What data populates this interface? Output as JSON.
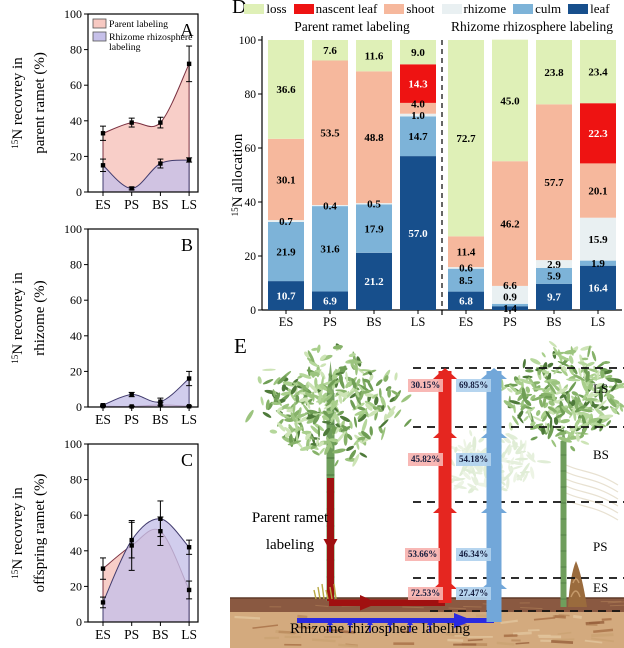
{
  "panel_d": {
    "letter": "D"
  },
  "panel_e": {
    "letter": "E",
    "parent_label_1": "Parent ramet",
    "parent_label_2": "labeling",
    "bottom_label": "Rhizome rhizosphere labeling",
    "colors": {
      "red_arrow": "#e52620",
      "blue_arrow": "#72a7d9",
      "dark_red": "#a01010",
      "ground_blue": "#2a2ae0"
    }
  },
  "chart_data": [
    {
      "id": "A",
      "type": "area",
      "letter": "A",
      "categories": [
        "ES",
        "PS",
        "BS",
        "LS"
      ],
      "ylabel": {
        "sup": "15",
        "line1": "N recovrey in",
        "line2": "parent ramet (%)"
      },
      "ylim": [
        0,
        100
      ],
      "yticks": [
        0,
        20,
        40,
        60,
        80,
        100
      ],
      "series": [
        {
          "name": "Parent labeling",
          "fill": "#f7c9c2",
          "opacity": 0.9,
          "stroke": "#7a3040",
          "values": [
            33,
            39,
            39,
            72
          ],
          "errors": [
            4,
            2.5,
            3,
            10
          ]
        },
        {
          "name": "Rhizome rhizosphere labeling",
          "fill": "#c6c0e9",
          "opacity": 0.8,
          "stroke": "#413b6d",
          "values": [
            15,
            2,
            16,
            18
          ],
          "errors": [
            3.5,
            0.8,
            2.5,
            1.2
          ]
        }
      ],
      "legend": [
        {
          "lines": [
            "Parent labeling"
          ],
          "fill": "#f7c9c2"
        },
        {
          "lines": [
            "Rhizome rhizosphere",
            "labeling"
          ],
          "fill": "#c6c0e9"
        }
      ]
    },
    {
      "id": "B",
      "type": "area",
      "letter": "B",
      "categories": [
        "ES",
        "PS",
        "BS",
        "LS"
      ],
      "ylabel": {
        "sup": "15",
        "line1": "N recovrey in",
        "line2": "rhizome (%)"
      },
      "ylim": [
        0,
        100
      ],
      "yticks": [
        0,
        20,
        40,
        60,
        80,
        100
      ],
      "series": [
        {
          "name": "Parent labeling",
          "fill": "#f7c9c2",
          "opacity": 0.9,
          "stroke": "#7a3040",
          "values": [
            0.5,
            0.3,
            1.2,
            0.4
          ],
          "errors": [
            0.3,
            0.2,
            1.5,
            0.3
          ]
        },
        {
          "name": "Rhizome rhizosphere labeling",
          "fill": "#c6c0e9",
          "opacity": 0.8,
          "stroke": "#413b6d",
          "values": [
            1,
            7,
            3,
            16
          ],
          "errors": [
            0.6,
            1.2,
            2,
            4
          ]
        }
      ]
    },
    {
      "id": "C",
      "type": "area",
      "letter": "C",
      "categories": [
        "ES",
        "PS",
        "BS",
        "LS"
      ],
      "ylabel": {
        "sup": "15",
        "line1": "N recovrey in",
        "line2": "offspring ramet (%)"
      },
      "ylim": [
        0,
        100
      ],
      "yticks": [
        0,
        20,
        40,
        60,
        80,
        100
      ],
      "series": [
        {
          "name": "Parent labeling",
          "fill": "#f7c9c2",
          "opacity": 0.9,
          "stroke": "#7a3040",
          "values": [
            30,
            43,
            51,
            18
          ],
          "errors": [
            6,
            14,
            8,
            5
          ]
        },
        {
          "name": "Rhizome rhizosphere labeling",
          "fill": "#c6c0e9",
          "opacity": 0.8,
          "stroke": "#413b6d",
          "values": [
            11,
            46,
            58,
            42
          ],
          "errors": [
            3,
            10,
            10,
            4
          ]
        }
      ]
    },
    {
      "id": "D",
      "type": "stacked-bar",
      "ylabel": {
        "sup": "15",
        "line1": "N allocation"
      },
      "ylim": [
        0,
        100
      ],
      "yticks": [
        0,
        20,
        40,
        60,
        80,
        100
      ],
      "legend": [
        {
          "label": "loss",
          "color": "#dff0b7"
        },
        {
          "label": "nascent leaf",
          "color": "#ee1312"
        },
        {
          "label": "shoot",
          "color": "#f6b89d"
        },
        {
          "label": "rhizome",
          "color": "#e9f0f2"
        },
        {
          "label": "culm",
          "color": "#7db3d8"
        },
        {
          "label": "leaf",
          "color": "#174f8c"
        }
      ],
      "segment_order": [
        "leaf",
        "culm",
        "rhizome",
        "shoot",
        "nascent leaf",
        "loss"
      ],
      "segment_colors": {
        "leaf": "#174f8c",
        "culm": "#7db3d8",
        "rhizome": "#e9f0f2",
        "shoot": "#f6b89d",
        "nascent leaf": "#ee1312",
        "loss": "#dff0b7"
      },
      "groups": [
        {
          "title": "Parent ramet labeling",
          "categories": [
            "ES",
            "PS",
            "BS",
            "LS"
          ],
          "bars": [
            {
              "leaf": 10.7,
              "culm": 21.9,
              "rhizome": 0.7,
              "shoot": 30.1,
              "nascent leaf": 0,
              "loss": 36.6
            },
            {
              "leaf": 6.9,
              "culm": 31.6,
              "rhizome": 0.4,
              "shoot": 53.5,
              "nascent leaf": 0,
              "loss": 7.6
            },
            {
              "leaf": 21.2,
              "culm": 17.9,
              "rhizome": 0.5,
              "shoot": 48.8,
              "nascent leaf": 0,
              "loss": 11.6
            },
            {
              "leaf": 57.0,
              "culm": 14.7,
              "rhizome": 1.0,
              "shoot": 4.0,
              "nascent leaf": 14.3,
              "loss": 9.0
            }
          ]
        },
        {
          "title": "Rhizome rhizosphere labeling",
          "categories": [
            "ES",
            "PS",
            "BS",
            "LS"
          ],
          "bars": [
            {
              "leaf": 6.8,
              "culm": 8.5,
              "rhizome": 0.6,
              "shoot": 11.4,
              "nascent leaf": 0,
              "loss": 72.7
            },
            {
              "leaf": 1.4,
              "culm": 0.9,
              "rhizome": 6.6,
              "shoot": 46.2,
              "nascent leaf": 0,
              "loss": 45.0
            },
            {
              "leaf": 9.7,
              "culm": 5.9,
              "rhizome": 2.9,
              "shoot": 57.7,
              "nascent leaf": 0,
              "loss": 23.8
            },
            {
              "leaf": 16.4,
              "culm": 1.9,
              "rhizome": 15.9,
              "shoot": 20.1,
              "nascent leaf": 22.3,
              "loss": 23.4
            }
          ]
        }
      ]
    },
    {
      "id": "E",
      "type": "diagram",
      "stages": [
        "LS",
        "BS",
        "PS",
        "ES"
      ],
      "red_labels": [
        "30.15%",
        "45.82%",
        "53.66%",
        "72.53%"
      ],
      "blue_labels": [
        "69.85%",
        "54.18%",
        "46.34%",
        "27.47%"
      ],
      "red_share": [
        30.15,
        45.82,
        53.66,
        72.53
      ],
      "blue_share": [
        69.85,
        54.18,
        46.34,
        27.47
      ]
    }
  ]
}
